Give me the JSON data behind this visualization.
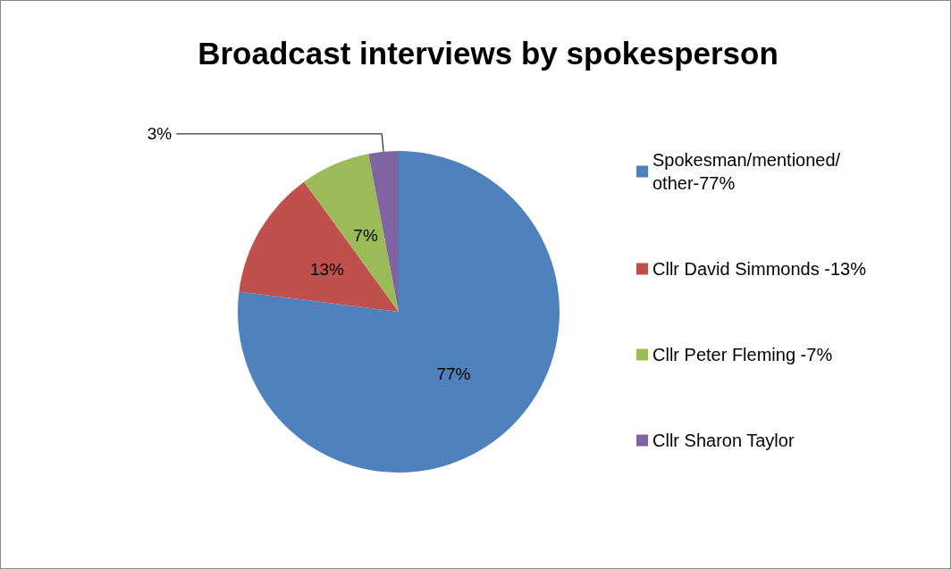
{
  "chart_data": {
    "type": "pie",
    "title": "Broadcast interviews by spokesperson",
    "categories": [
      "Spokesman/mentioned/other-77%",
      "Cllr David Simmonds -13%",
      "Cllr Peter Fleming -7%",
      "Cllr Sharon Taylor"
    ],
    "values": [
      77,
      13,
      7,
      3
    ],
    "colors": [
      "#4f81bd",
      "#c0504d",
      "#9bbb59",
      "#8064a2"
    ],
    "value_labels": [
      "77%",
      "13%",
      "7%",
      "3%"
    ],
    "legend": "right"
  }
}
